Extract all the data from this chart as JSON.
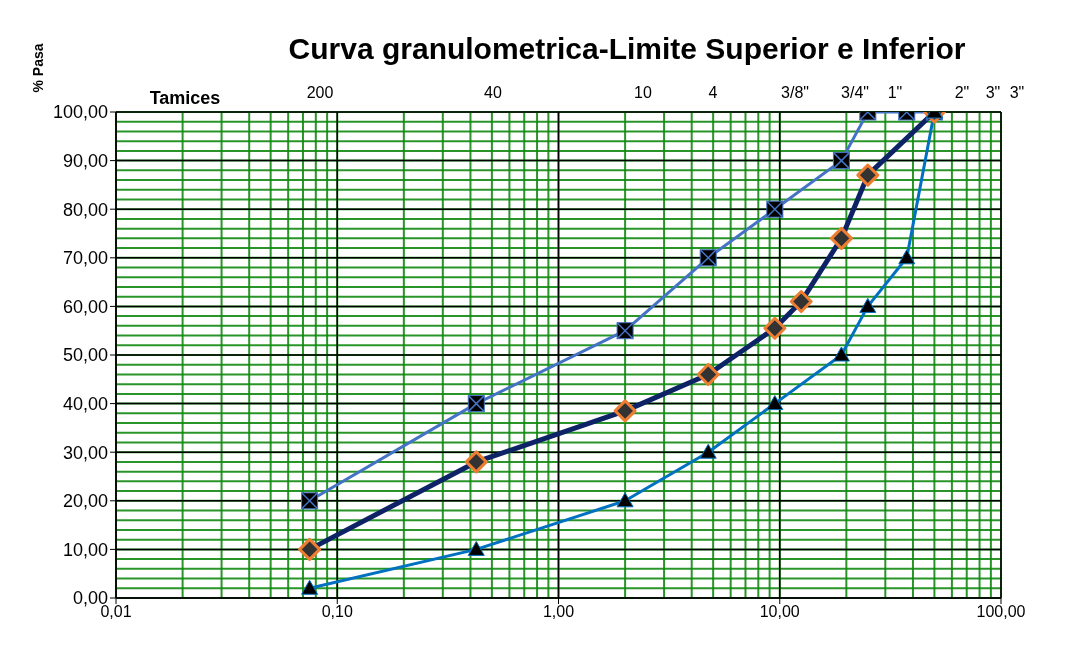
{
  "chart_data": {
    "type": "line",
    "title": "Curva granulometrica-Limite Superior e Inferior",
    "ylabel": "% Pasa",
    "annotations": [
      "Tamices",
      "200",
      "40",
      "10",
      "4",
      "3/8\"",
      "3/4\"",
      "1\"",
      "2\"",
      "3\"",
      "3\""
    ],
    "log": "x",
    "grid": true,
    "legend": false,
    "xlim": [
      0.01,
      100
    ],
    "xticks": [
      {
        "value": 0.01,
        "label": "0,01"
      },
      {
        "value": 0.1,
        "label": "0,10"
      },
      {
        "value": 1,
        "label": "1,00"
      },
      {
        "value": 10,
        "label": "10,00"
      },
      {
        "value": 100,
        "label": "100,00"
      }
    ],
    "ylim": [
      0,
      100
    ],
    "yticks": [
      {
        "value": 0,
        "label": "0,00"
      },
      {
        "value": 10,
        "label": "10,00"
      },
      {
        "value": 20,
        "label": "20,00"
      },
      {
        "value": 30,
        "label": "30,00"
      },
      {
        "value": 40,
        "label": "40,00"
      },
      {
        "value": 50,
        "label": "50,00"
      },
      {
        "value": 60,
        "label": "60,00"
      },
      {
        "value": 70,
        "label": "70,00"
      },
      {
        "value": 80,
        "label": "80,00"
      },
      {
        "value": 90,
        "label": "90,00"
      },
      {
        "value": 100,
        "label": "100,00"
      }
    ],
    "series": [
      {
        "color": "#4472c4",
        "marker": "square",
        "x": [
          0.075,
          0.425,
          2,
          4.75,
          9.5,
          19,
          25,
          37.5,
          50
        ],
        "values": [
          20,
          40,
          55,
          70,
          80,
          90,
          100,
          100,
          100
        ]
      },
      {
        "color": "#0d2366",
        "marker": "diamond",
        "x": [
          0.075,
          0.425,
          2,
          4.75,
          9.5,
          12.5,
          19,
          25,
          50
        ],
        "values": [
          10,
          28,
          38.5,
          46,
          55.5,
          61,
          74,
          87,
          100
        ]
      },
      {
        "color": "#0070c0",
        "marker": "triangle",
        "x": [
          0.075,
          0.425,
          2,
          4.75,
          9.5,
          19,
          25,
          37.5,
          50
        ],
        "values": [
          2,
          10,
          20,
          30,
          40,
          50,
          60,
          70,
          100
        ]
      }
    ]
  }
}
